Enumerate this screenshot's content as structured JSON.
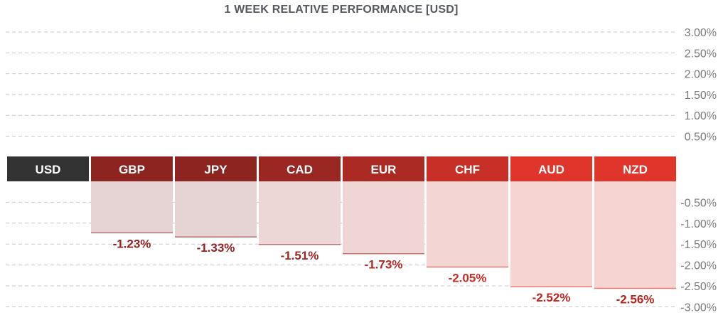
{
  "chart_data": {
    "type": "bar",
    "title": "1 WEEK RELATIVE PERFORMANCE  [USD]",
    "base_label": "USD",
    "categories": [
      "GBP",
      "JPY",
      "CAD",
      "EUR",
      "CHF",
      "AUD",
      "NZD"
    ],
    "values": [
      -1.23,
      -1.33,
      -1.51,
      -1.73,
      -2.05,
      -2.52,
      -2.56
    ],
    "value_labels": [
      "-1.23%",
      "-1.33%",
      "-1.51%",
      "-1.73%",
      "-2.05%",
      "-2.52%",
      "-2.56%"
    ],
    "ylim": [
      -3.0,
      3.0
    ],
    "positive_ticks": [
      "3.00%",
      "2.50%",
      "2.00%",
      "1.50%",
      "1.00%",
      "0.50%"
    ],
    "negative_ticks": [
      "-0.50%",
      "-1.00%",
      "-1.50%",
      "-2.00%",
      "-2.50%",
      "-3.00%"
    ],
    "grid": true,
    "axis_position": "right",
    "colors": {
      "base_header": "#333333",
      "header_colors": [
        "#8e2420",
        "#8e2420",
        "#9b2722",
        "#ab2a24",
        "#c72f27",
        "#e0352b",
        "#e0352b"
      ],
      "bar_fills": [
        "#e6d4d5",
        "#e6d4d5",
        "#ecd6d6",
        "#efd5d4",
        "#f3d6d4",
        "#f6d4d2",
        "#f6d4d2"
      ],
      "label_colors": [
        "#8e2420",
        "#8e2420",
        "#9b2722",
        "#ab2a24",
        "#c72f27",
        "#b8261f",
        "#b8261f"
      ]
    }
  }
}
